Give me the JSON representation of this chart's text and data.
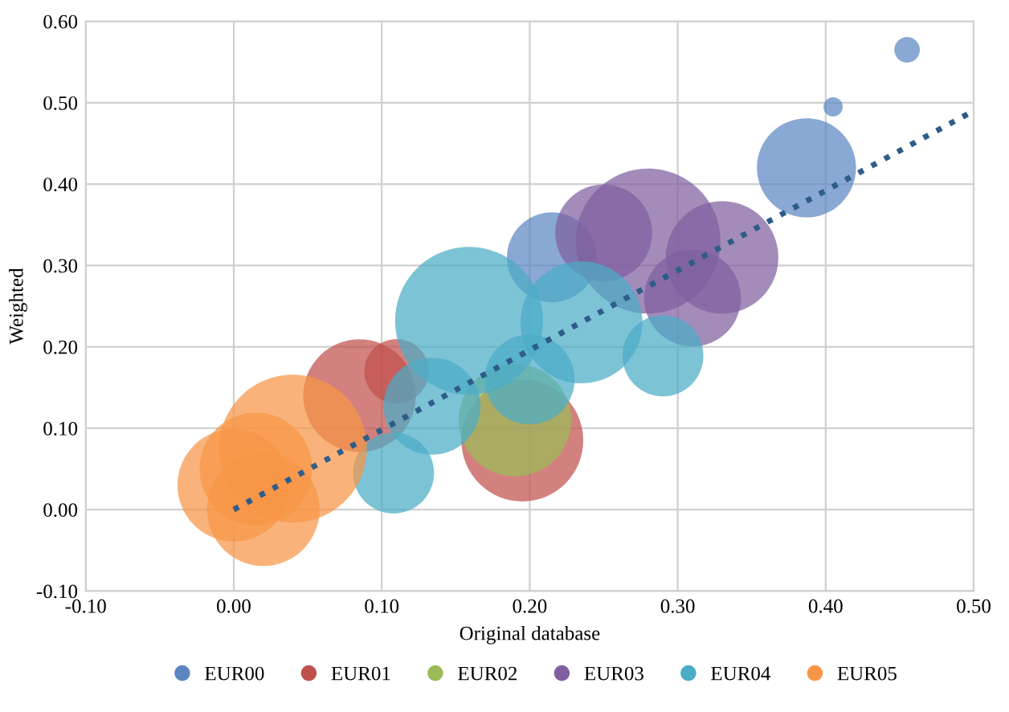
{
  "chart_data": {
    "type": "bubble",
    "xlabel": "Original database",
    "ylabel": "Weighted",
    "xlim": [
      -0.1,
      0.5
    ],
    "ylim": [
      -0.1,
      0.6
    ],
    "xticks": [
      {
        "value": -0.1,
        "label": "-0.10"
      },
      {
        "value": 0,
        "label": "0.00"
      },
      {
        "value": 0.1,
        "label": "0.10"
      },
      {
        "value": 0.2,
        "label": "0.20"
      },
      {
        "value": 0.3,
        "label": "0.30"
      },
      {
        "value": 0.4,
        "label": "0.40"
      },
      {
        "value": 0.5,
        "label": "0.50"
      }
    ],
    "yticks": [
      {
        "value": -0.1,
        "label": "-0.10"
      },
      {
        "value": 0,
        "label": "0.00"
      },
      {
        "value": 0.1,
        "label": "0.10"
      },
      {
        "value": 0.2,
        "label": "0.20"
      },
      {
        "value": 0.3,
        "label": "0.30"
      },
      {
        "value": 0.4,
        "label": "0.40"
      },
      {
        "value": 0.5,
        "label": "0.50"
      },
      {
        "value": 0.6,
        "label": "0.60"
      }
    ],
    "grid": true,
    "legend": "bottom",
    "marker": "circle",
    "series": [
      {
        "name": "EUR00",
        "color": "#5b86c2",
        "x": [
          0.455,
          0.405,
          0.387,
          0.215
        ],
        "values": [
          0.565,
          0.495,
          0.42,
          0.31
        ],
        "sizes": [
          0.03,
          0.017,
          0.45,
          0.37
        ]
      },
      {
        "name": "EUR01",
        "color": "#c0504d",
        "x": [
          0.085,
          0.195,
          0.11
        ],
        "values": [
          0.14,
          0.085,
          0.17
        ],
        "sizes": [
          0.58,
          0.68,
          0.19
        ]
      },
      {
        "name": "EUR02",
        "color": "#9bbb59",
        "x": [
          0.19
        ],
        "values": [
          0.11
        ],
        "sizes": [
          0.58
        ]
      },
      {
        "name": "EUR03",
        "color": "#7f5fa0",
        "x": [
          0.25,
          0.31,
          0.33,
          0.28
        ],
        "values": [
          0.34,
          0.26,
          0.31,
          0.33
        ],
        "sizes": [
          0.43,
          0.43,
          0.58,
          0.96
        ]
      },
      {
        "name": "EUR04",
        "color": "#4bacc6",
        "x": [
          0.108,
          0.134,
          0.2,
          0.29,
          0.235,
          0.159
        ],
        "values": [
          0.045,
          0.127,
          0.16,
          0.189,
          0.23,
          0.232
        ],
        "sizes": [
          0.3,
          0.43,
          0.37,
          0.3,
          0.68,
          1
        ]
      },
      {
        "name": "EUR05",
        "color": "#f79646",
        "x": [
          0.02,
          0.0,
          0.015,
          0.04
        ],
        "values": [
          0.0,
          0.03,
          0.05,
          0.075
        ],
        "sizes": [
          0.58,
          0.58,
          0.58,
          1
        ]
      },
      {
        "type": "line",
        "color": "#2e5d8a",
        "line_style": "dotted",
        "marker": "none",
        "x": [
          0,
          0.5
        ],
        "values": [
          0.0,
          0.49
        ]
      }
    ]
  }
}
